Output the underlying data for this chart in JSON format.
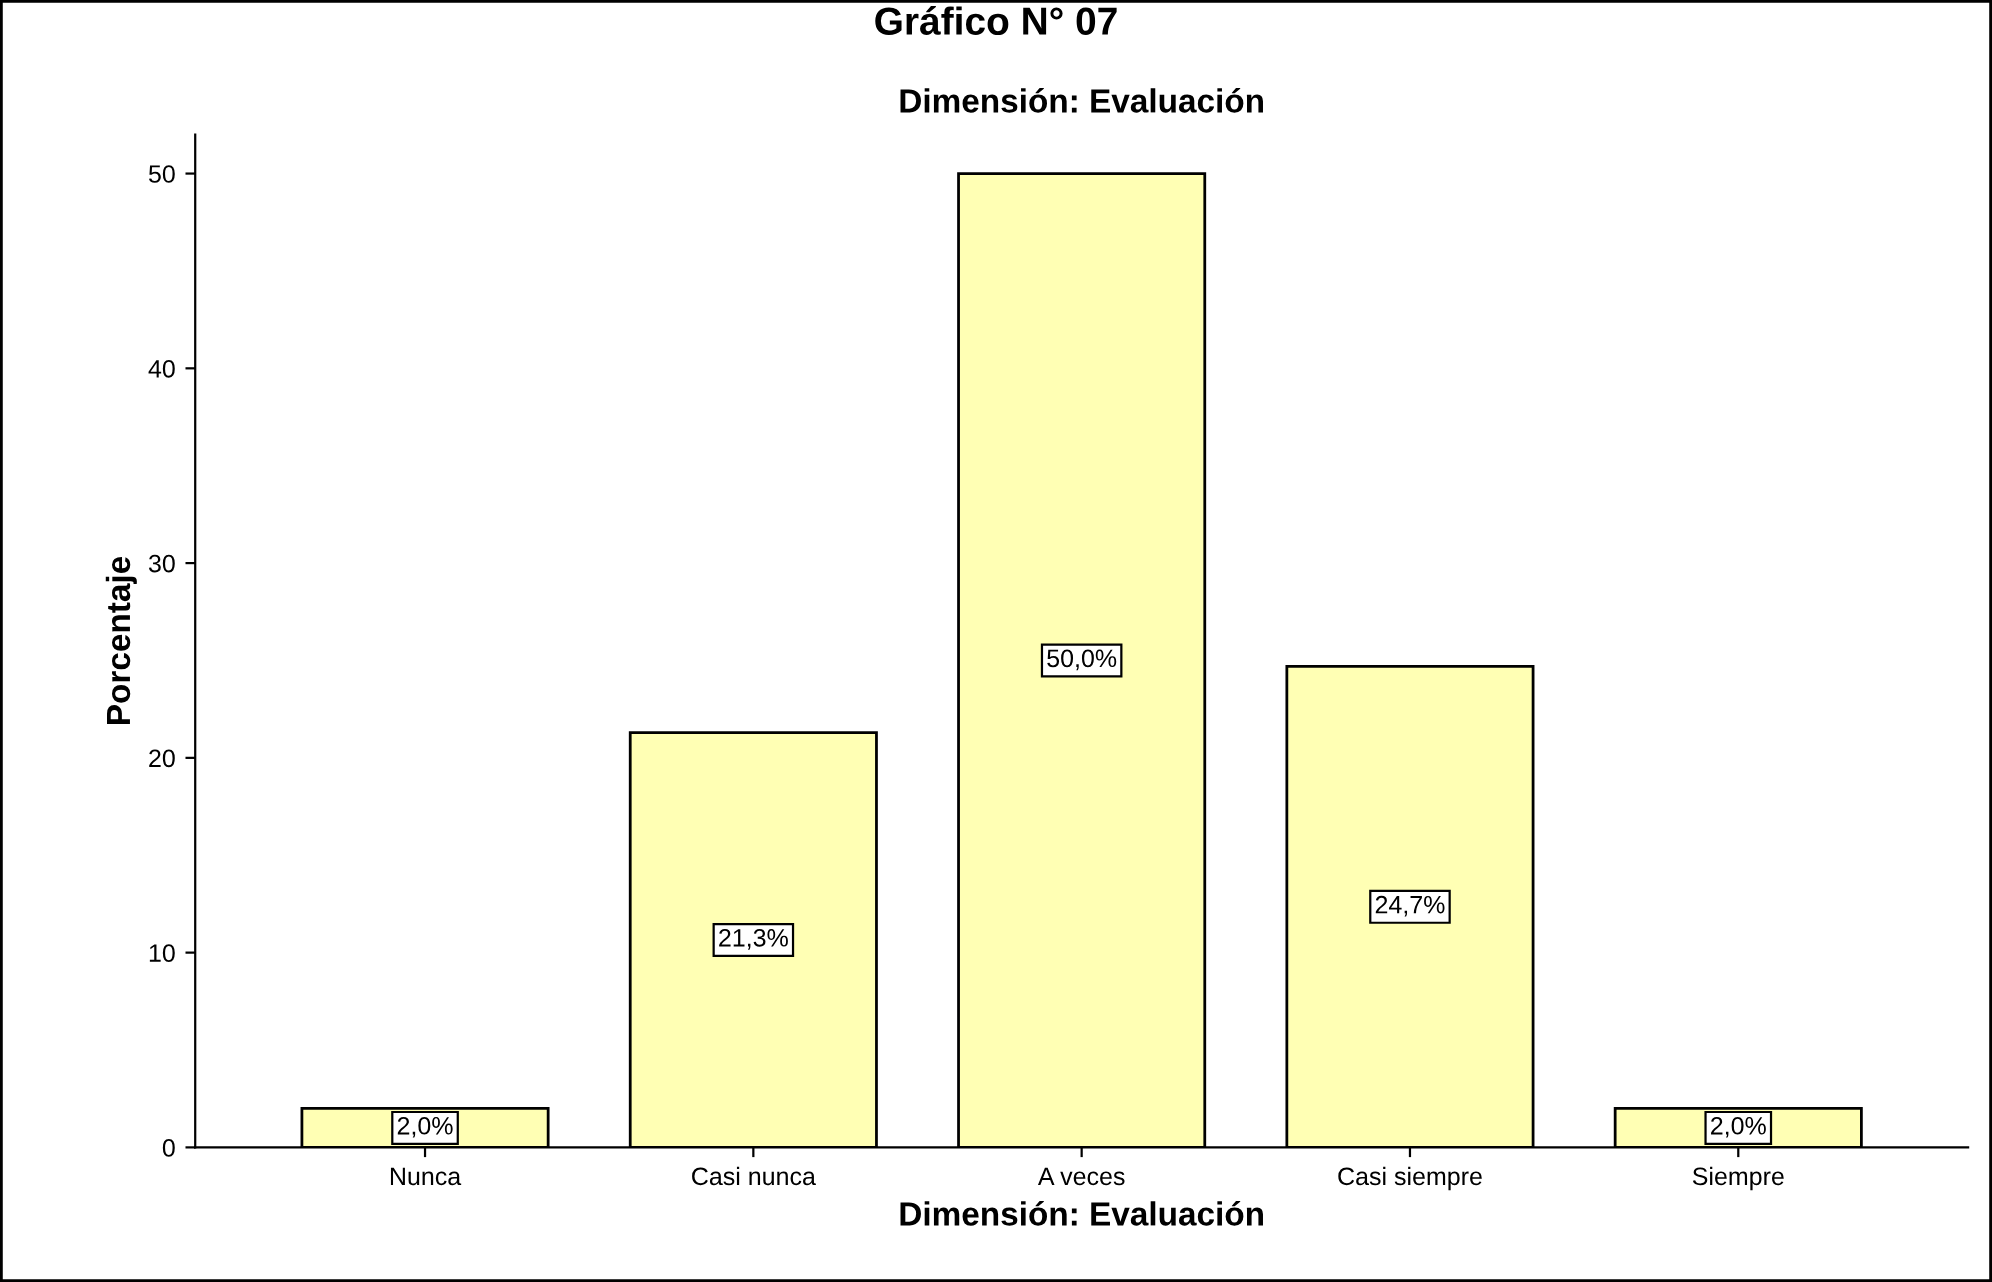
{
  "chart_data": {
    "type": "bar",
    "title": "Gráfico N° 07",
    "subtitle": "Dimensión: Evaluación",
    "xlabel": "Dimensión: Evaluación",
    "ylabel": "Porcentaje",
    "categories": [
      "Nunca",
      "Casi nunca",
      "A veces",
      "Casi siempre",
      "Siempre"
    ],
    "values": [
      2.0,
      21.3,
      50.0,
      24.7,
      2.0
    ],
    "value_labels": [
      "2,0%",
      "21,3%",
      "50,0%",
      "24,7%",
      "2,0%"
    ],
    "color": "#ffffb4",
    "ylim": [
      0,
      52
    ],
    "yticks": [
      0,
      10,
      20,
      30,
      40,
      50
    ],
    "grid": false,
    "legend": false
  }
}
